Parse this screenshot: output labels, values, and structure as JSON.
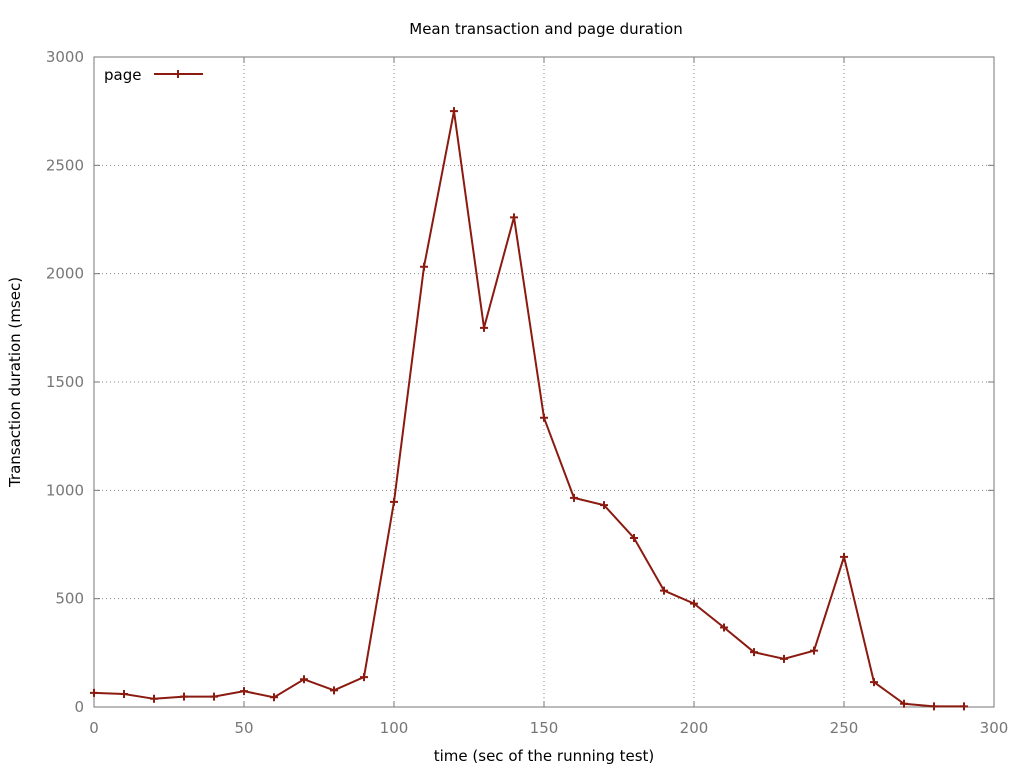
{
  "chart_data": {
    "type": "line",
    "title": "Mean transaction and page duration",
    "xlabel": "time (sec of the running test)",
    "ylabel": "Transaction duration (msec)",
    "xlim": [
      0,
      300
    ],
    "ylim": [
      0,
      3000
    ],
    "xticks": [
      0,
      50,
      100,
      150,
      200,
      250,
      300
    ],
    "yticks": [
      0,
      500,
      1000,
      1500,
      2000,
      2500,
      3000
    ],
    "grid": true,
    "legend_position": "top-left",
    "series": [
      {
        "name": "page",
        "color": "#8b1a10",
        "marker": "plus",
        "x": [
          0,
          10,
          20,
          30,
          40,
          50,
          60,
          70,
          80,
          90,
          100,
          110,
          120,
          130,
          140,
          150,
          160,
          170,
          180,
          190,
          200,
          210,
          220,
          230,
          240,
          250,
          260,
          270,
          280,
          290
        ],
        "y": [
          65,
          60,
          38,
          48,
          48,
          73,
          45,
          128,
          77,
          138,
          947,
          2032,
          2750,
          1750,
          2260,
          1335,
          965,
          932,
          780,
          537,
          477,
          367,
          253,
          222,
          260,
          693,
          115,
          15,
          3,
          3
        ]
      }
    ]
  }
}
